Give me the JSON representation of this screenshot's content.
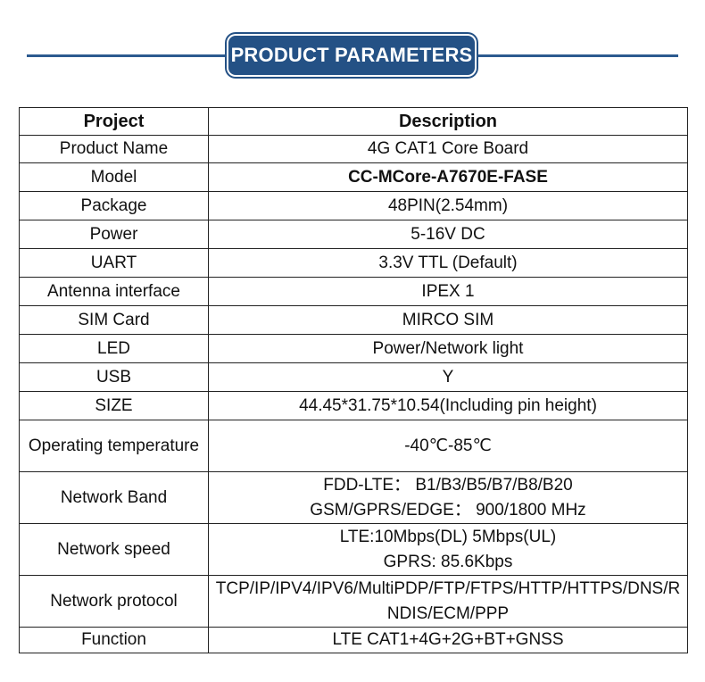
{
  "header": {
    "title": "PRODUCT PARAMETERS"
  },
  "table": {
    "columns": [
      "Project",
      "Description"
    ],
    "rows": [
      {
        "project": "Product Name",
        "description": [
          "4G CAT1 Core Board"
        ]
      },
      {
        "project": "Model",
        "description": [
          "CC-MCore-A7670E-FASE"
        ],
        "bold": true
      },
      {
        "project": "Package",
        "description": [
          "48PIN(2.54mm)"
        ]
      },
      {
        "project": "Power",
        "description": [
          "5-16V DC"
        ]
      },
      {
        "project": "UART",
        "description": [
          "3.3V TTL (Default)"
        ]
      },
      {
        "project": "Antenna interface",
        "description": [
          "IPEX 1"
        ]
      },
      {
        "project": "SIM Card",
        "description": [
          "MIRCO SIM"
        ]
      },
      {
        "project": "LED",
        "description": [
          "Power/Network light"
        ]
      },
      {
        "project": "USB",
        "description": [
          "Y"
        ]
      },
      {
        "project": "SIZE",
        "description": [
          "44.45*31.75*10.54(Including pin height)"
        ]
      },
      {
        "project": "Operating temperature",
        "description": [
          "-40℃-85℃"
        ]
      },
      {
        "project": "Network Band",
        "description": [
          "FDD-LTE： B1/B3/B5/B7/B8/B20",
          "GSM/GPRS/EDGE： 900/1800 MHz"
        ]
      },
      {
        "project": "Network speed",
        "description": [
          "LTE:10Mbps(DL) 5Mbps(UL)",
          "GPRS: 85.6Kbps"
        ]
      },
      {
        "project": "Network protocol",
        "description": [
          "TCP/IP/IPV4/IPV6/MultiPDP/FTP/FTPS/HTTP/HTTPS/DNS/RNDIS/ECM/PPP"
        ]
      },
      {
        "project": "Function",
        "description": [
          "LTE CAT1+4G+2G+BT+GNSS"
        ]
      }
    ]
  }
}
